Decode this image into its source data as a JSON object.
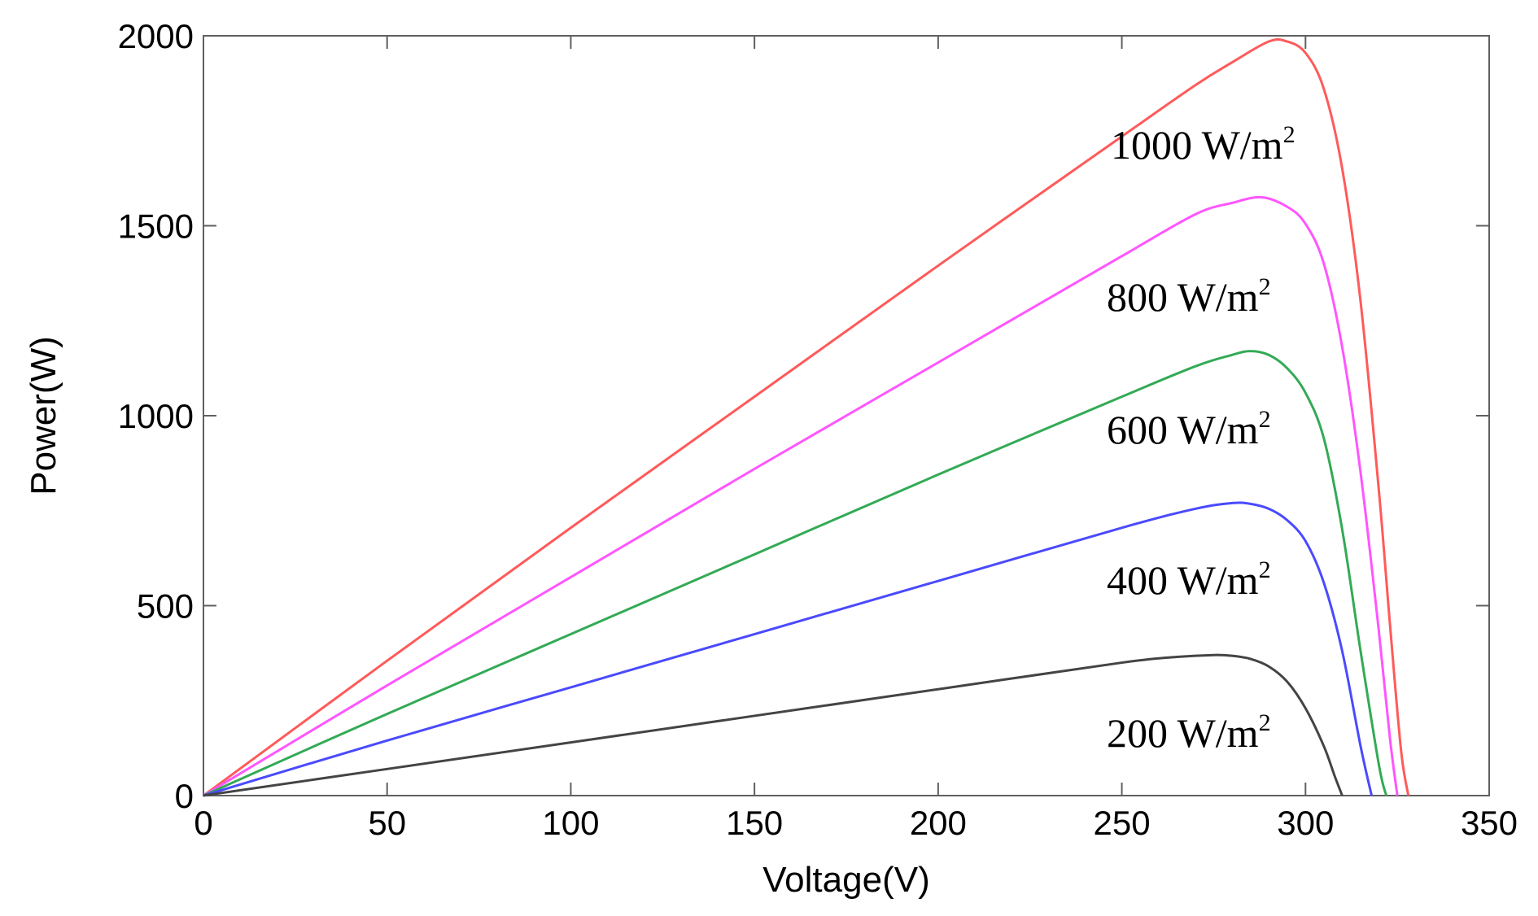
{
  "chart_data": {
    "type": "line",
    "title": "",
    "xlabel": "Voltage(V)",
    "ylabel": "Power(W)",
    "xlim": [
      0,
      350
    ],
    "ylim": [
      0,
      2000
    ],
    "xticks": [
      0,
      50,
      100,
      150,
      200,
      250,
      300,
      350
    ],
    "yticks": [
      0,
      500,
      1000,
      1500,
      2000
    ],
    "grid": false,
    "legend": "none",
    "series": [
      {
        "label_base": "1000 W/m",
        "label_sup": "2",
        "color": "#ff5a5a",
        "x": [
          0,
          50,
          100,
          150,
          200,
          250,
          270,
          280,
          290,
          295,
          300,
          305,
          310,
          315,
          320,
          323,
          326,
          328
        ],
        "y": [
          0,
          355,
          705,
          1050,
          1395,
          1735,
          1870,
          1930,
          1985,
          1985,
          1955,
          1860,
          1650,
          1300,
          800,
          450,
          120,
          0
        ]
      },
      {
        "label_base": "800 W/m",
        "label_sup": "2",
        "color": "#ff55ff",
        "x": [
          0,
          50,
          100,
          150,
          200,
          250,
          270,
          280,
          288,
          295,
          300,
          305,
          310,
          315,
          320,
          323,
          325
        ],
        "y": [
          0,
          290,
          575,
          860,
          1140,
          1420,
          1530,
          1560,
          1575,
          1550,
          1505,
          1400,
          1180,
          850,
          430,
          150,
          0
        ]
      },
      {
        "label_base": "600 W/m",
        "label_sup": "2",
        "color": "#33aa55",
        "x": [
          0,
          50,
          100,
          150,
          200,
          250,
          270,
          280,
          285,
          290,
          295,
          300,
          305,
          310,
          315,
          320,
          322
        ],
        "y": [
          0,
          215,
          425,
          635,
          845,
          1050,
          1130,
          1160,
          1170,
          1160,
          1125,
          1060,
          940,
          700,
          380,
          80,
          0
        ]
      },
      {
        "label_base": "400 W/m",
        "label_sup": "2",
        "color": "#4a4aff",
        "x": [
          0,
          50,
          100,
          150,
          200,
          250,
          270,
          280,
          285,
          290,
          295,
          300,
          305,
          310,
          315,
          318
        ],
        "y": [
          0,
          145,
          285,
          425,
          565,
          705,
          755,
          770,
          768,
          755,
          725,
          670,
          560,
          380,
          130,
          0
        ]
      },
      {
        "label_base": "200 W/m",
        "label_sup": "2",
        "color": "#444444",
        "x": [
          0,
          50,
          100,
          150,
          200,
          250,
          265,
          275,
          280,
          285,
          290,
          295,
          300,
          305,
          308,
          310
        ],
        "y": [
          0,
          70,
          140,
          210,
          280,
          350,
          365,
          370,
          368,
          360,
          340,
          300,
          230,
          130,
          50,
          0
        ]
      }
    ]
  }
}
